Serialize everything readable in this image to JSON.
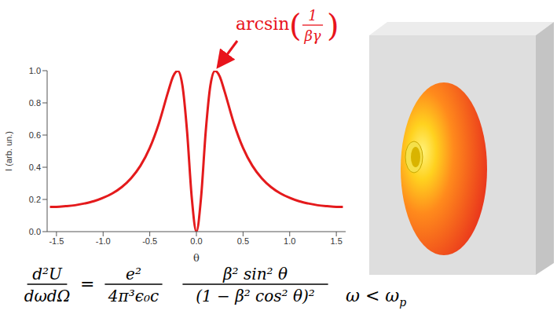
{
  "chart_data": {
    "type": "line",
    "x_label": "θ",
    "y_label": "I (arb. un.)",
    "xlim": [
      -1.6,
      1.6
    ],
    "xticks": [
      -1.5,
      {
        "value": -1,
        "label": "-1.0"
      },
      -0.5,
      {
        "value": 0,
        "label": "0.0"
      },
      0.5,
      {
        "value": 1,
        "label": "1.0"
      },
      1.5
    ],
    "ylim": [
      0,
      1
    ],
    "yticks": [
      {
        "value": 0,
        "label": "0.0"
      },
      0.2,
      0.4,
      0.6,
      0.8,
      {
        "value": 1,
        "label": "1.0"
      }
    ],
    "grid": false,
    "color": "#e41a1c",
    "x": [
      -1.57,
      -1.5,
      -1.4,
      -1.3,
      -1.2,
      -1.1,
      -1.0,
      -0.9,
      -0.8,
      -0.7,
      -0.6,
      -0.5,
      -0.4,
      -0.3,
      -0.25,
      -0.2,
      -0.15,
      -0.1,
      -0.05,
      0,
      0.05,
      0.1,
      0.15,
      0.2,
      0.25,
      0.3,
      0.4,
      0.5,
      0.6,
      0.7,
      0.8,
      0.9,
      1.0,
      1.1,
      1.2,
      1.3,
      1.4,
      1.5,
      1.57
    ],
    "values": [
      0.154,
      0.154,
      0.158,
      0.164,
      0.175,
      0.189,
      0.21,
      0.238,
      0.277,
      0.332,
      0.409,
      0.52,
      0.676,
      0.875,
      0.964,
      0.999,
      0.909,
      0.623,
      0.213,
      0,
      0.213,
      0.623,
      0.909,
      0.999,
      0.964,
      0.875,
      0.676,
      0.52,
      0.409,
      0.332,
      0.277,
      0.238,
      0.21,
      0.189,
      0.175,
      0.164,
      0.158,
      0.154,
      0.154
    ],
    "annotations": [
      {
        "text": "arcsin",
        "numerator": "1",
        "denominator": "βγ",
        "color": "#e8141c"
      },
      {
        "lhs": {
          "numerator": "d²U",
          "denominator": "dωdΩ"
        },
        "relation": "=",
        "factor": {
          "numerator": "e²",
          "denominator": "4π³ϵ₀c"
        },
        "fraction": {
          "numerator": "β² sin² θ",
          "denominator": "(1 − β² cos² θ)²"
        }
      },
      {
        "text": "ω < ω",
        "subscript": "p"
      }
    ]
  }
}
